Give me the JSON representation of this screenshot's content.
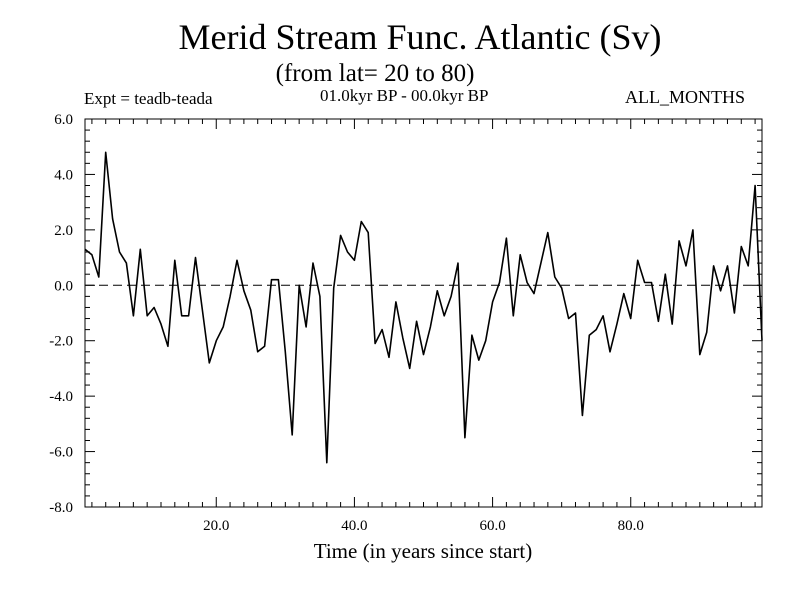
{
  "header": {
    "title": "Merid Stream Func. Atlantic (Sv)",
    "subtitle": "(from lat= 20 to 80)",
    "expt": "Expt = teadb-teada",
    "period": "01.0kyr BP - 00.0kyr BP",
    "months": "ALL_MONTHS"
  },
  "chart_data": {
    "type": "line",
    "title": "Merid Stream Func. Atlantic (Sv)",
    "subtitle": "(from lat= 20 to 80)",
    "xlabel": "Time (in years since start)",
    "ylabel": "",
    "xlim": [
      1,
      99
    ],
    "ylim": [
      -8,
      6
    ],
    "x_ticks": [
      20,
      40,
      60,
      80
    ],
    "x_tick_labels": [
      "20.0",
      "40.0",
      "60.0",
      "80.0"
    ],
    "y_ticks": [
      -8,
      -6,
      -4,
      -2,
      0,
      2,
      4,
      6
    ],
    "y_tick_labels": [
      "-8.0",
      "-6.0",
      "-4.0",
      "-2.0",
      "0.0",
      "2.0",
      "4.0",
      "6.0"
    ],
    "reference_line": {
      "y": 0,
      "style": "dashed"
    },
    "series": [
      {
        "name": "teadb-teada",
        "color": "#000000",
        "x": [
          1,
          2,
          3,
          4,
          5,
          6,
          7,
          8,
          9,
          10,
          11,
          12,
          13,
          14,
          15,
          16,
          17,
          18,
          19,
          20,
          21,
          22,
          23,
          24,
          25,
          26,
          27,
          28,
          29,
          30,
          31,
          32,
          33,
          34,
          35,
          36,
          37,
          38,
          39,
          40,
          41,
          42,
          43,
          44,
          45,
          46,
          47,
          48,
          49,
          50,
          51,
          52,
          53,
          54,
          55,
          56,
          57,
          58,
          59,
          60,
          61,
          62,
          63,
          64,
          65,
          66,
          67,
          68,
          69,
          70,
          71,
          72,
          73,
          74,
          75,
          76,
          77,
          78,
          79,
          80,
          81,
          82,
          83,
          84,
          85,
          86,
          87,
          88,
          89,
          90,
          91,
          92,
          93,
          94,
          95,
          96,
          97,
          98,
          99
        ],
        "values": [
          1.3,
          1.1,
          0.3,
          4.8,
          2.4,
          1.2,
          0.8,
          -1.1,
          1.3,
          -1.1,
          -0.8,
          -1.4,
          -2.2,
          0.9,
          -1.1,
          -1.1,
          1.0,
          -0.9,
          -2.8,
          -2.0,
          -1.5,
          -0.4,
          0.9,
          -0.2,
          -0.9,
          -2.4,
          -2.2,
          0.2,
          0.2,
          -2.4,
          -5.4,
          0.0,
          -1.5,
          0.8,
          -0.4,
          -6.4,
          -0.1,
          1.8,
          1.2,
          0.9,
          2.3,
          1.9,
          -2.1,
          -1.6,
          -2.6,
          -0.6,
          -1.9,
          -3.0,
          -1.3,
          -2.5,
          -1.5,
          -0.2,
          -1.1,
          -0.4,
          0.8,
          -5.5,
          -1.8,
          -2.7,
          -2.0,
          -0.6,
          0.1,
          1.7,
          -1.1,
          1.1,
          0.1,
          -0.3,
          0.8,
          1.9,
          0.3,
          -0.1,
          -1.2,
          -1.0,
          -4.7,
          -1.8,
          -1.6,
          -1.1,
          -2.4,
          -1.4,
          -0.3,
          -1.2,
          0.9,
          0.1,
          0.1,
          -1.3,
          0.4,
          -1.4,
          1.6,
          0.7,
          2.0,
          -2.5,
          -1.7,
          0.7,
          -0.2,
          0.7,
          -1.0,
          1.4,
          0.7,
          3.6,
          -2.0
        ]
      }
    ]
  }
}
